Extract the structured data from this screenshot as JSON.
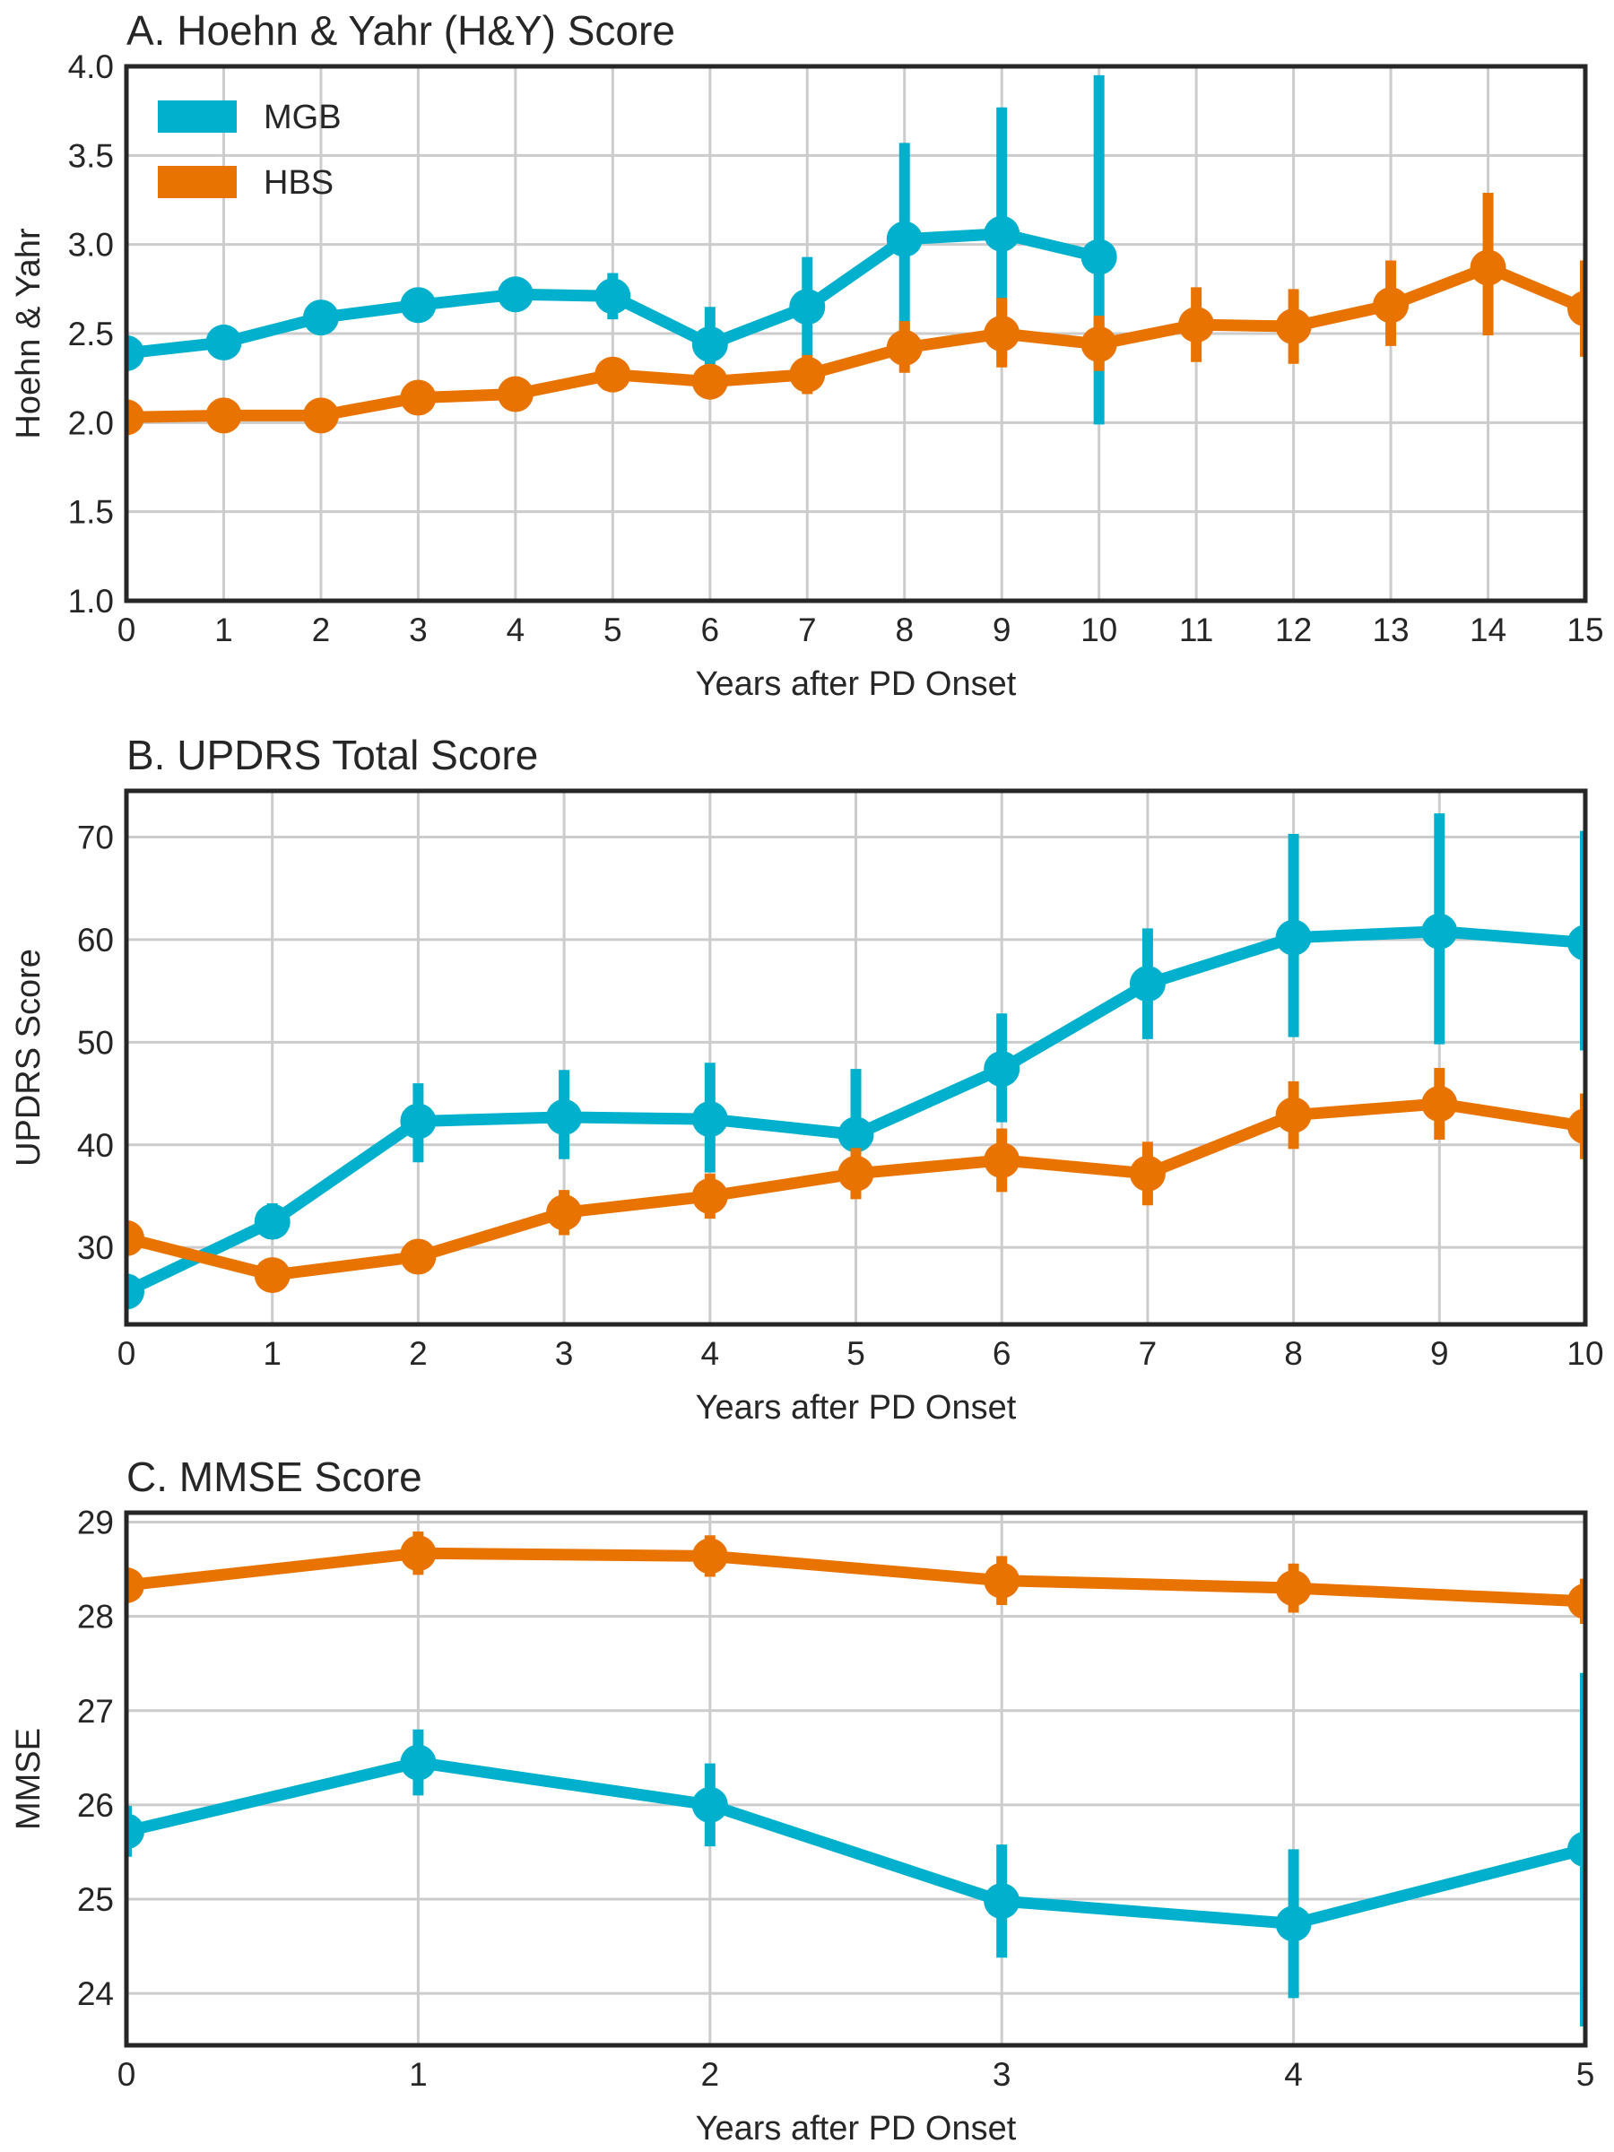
{
  "colors": {
    "MGB": "#00b0cc",
    "HBS": "#e97300"
  },
  "legend": [
    {
      "name": "MGB",
      "color": "#00b0cc"
    },
    {
      "name": "HBS",
      "color": "#e97300"
    }
  ],
  "chart_data": [
    {
      "type": "line",
      "title": "A. Hoehn & Yahr (H&Y) Score",
      "xlabel": "Years after PD Onset",
      "ylabel": "Hoehn & Yahr",
      "xlim": [
        0,
        15
      ],
      "ylim": [
        1.0,
        4.0
      ],
      "xticks": [
        0,
        1,
        2,
        3,
        4,
        5,
        6,
        7,
        8,
        9,
        10,
        11,
        12,
        13,
        14,
        15
      ],
      "yticks": [
        1.0,
        1.5,
        2.0,
        2.5,
        3.0,
        3.5,
        4.0
      ],
      "ytick_labels": [
        "1.0",
        "1.5",
        "2.0",
        "2.5",
        "3.0",
        "3.5",
        "4.0"
      ],
      "grid": true,
      "legend_position": "top-left",
      "series": [
        {
          "name": "MGB",
          "x": [
            0,
            1,
            2,
            3,
            4,
            5,
            6,
            7,
            8,
            9,
            10
          ],
          "y": [
            2.39,
            2.45,
            2.59,
            2.66,
            2.72,
            2.71,
            2.44,
            2.65,
            3.03,
            3.06,
            2.93
          ],
          "err_low": [
            2.35,
            2.41,
            2.55,
            2.62,
            2.68,
            2.58,
            2.23,
            2.37,
            2.5,
            2.37,
            1.99
          ],
          "err_high": [
            2.43,
            2.5,
            2.63,
            2.71,
            2.76,
            2.84,
            2.65,
            2.93,
            3.57,
            3.77,
            3.95
          ]
        },
        {
          "name": "HBS",
          "x": [
            0,
            1,
            2,
            3,
            4,
            5,
            6,
            7,
            8,
            9,
            10,
            11,
            12,
            13,
            14,
            15
          ],
          "y": [
            2.03,
            2.04,
            2.04,
            2.14,
            2.16,
            2.27,
            2.23,
            2.27,
            2.42,
            2.5,
            2.44,
            2.55,
            2.54,
            2.66,
            2.87,
            2.64
          ],
          "err_low": [
            1.99,
            2.0,
            2.0,
            2.1,
            2.12,
            2.18,
            2.14,
            2.16,
            2.28,
            2.31,
            2.29,
            2.34,
            2.33,
            2.43,
            2.49,
            2.37
          ],
          "err_high": [
            2.07,
            2.08,
            2.08,
            2.18,
            2.21,
            2.36,
            2.32,
            2.38,
            2.57,
            2.7,
            2.6,
            2.76,
            2.75,
            2.91,
            3.29,
            2.91
          ]
        }
      ]
    },
    {
      "type": "line",
      "title": "B. UPDRS Total Score",
      "xlabel": "Years after PD Onset",
      "ylabel": "UPDRS Score",
      "xlim": [
        0,
        10
      ],
      "ylim": [
        22.5,
        74.5
      ],
      "xticks": [
        0,
        1,
        2,
        3,
        4,
        5,
        6,
        7,
        8,
        9,
        10
      ],
      "yticks": [
        30,
        40,
        50,
        60,
        70
      ],
      "ytick_labels": [
        "30",
        "40",
        "50",
        "60",
        "70"
      ],
      "grid": true,
      "series": [
        {
          "name": "MGB",
          "x": [
            0,
            1,
            2,
            3,
            4,
            5,
            6,
            7,
            8,
            9,
            10
          ],
          "y": [
            25.7,
            32.5,
            42.3,
            42.7,
            42.5,
            41.0,
            47.4,
            55.7,
            60.2,
            60.8,
            59.7
          ],
          "err_low": [
            24.7,
            30.8,
            38.3,
            38.6,
            37.3,
            34.8,
            42.2,
            50.3,
            50.5,
            49.8,
            49.2
          ],
          "err_high": [
            26.7,
            34.3,
            46.0,
            47.3,
            48.0,
            47.4,
            52.8,
            61.1,
            70.3,
            72.3,
            70.6
          ]
        },
        {
          "name": "HBS",
          "x": [
            0,
            1,
            2,
            3,
            4,
            5,
            6,
            7,
            8,
            9,
            10
          ],
          "y": [
            30.9,
            27.3,
            29.1,
            33.4,
            35.0,
            37.2,
            38.5,
            37.2,
            42.9,
            44.0,
            41.8
          ],
          "err_low": [
            29.3,
            26.3,
            27.8,
            31.2,
            32.8,
            34.7,
            35.4,
            34.1,
            39.6,
            40.5,
            38.6
          ],
          "err_high": [
            32.5,
            28.3,
            30.4,
            35.6,
            37.2,
            39.7,
            41.6,
            40.3,
            46.2,
            47.5,
            45.0
          ]
        }
      ]
    },
    {
      "type": "line",
      "title": "C. MMSE Score",
      "xlabel": "Years after PD Onset",
      "ylabel": "MMSE",
      "xlim": [
        0,
        5
      ],
      "ylim": [
        23.45,
        29.1
      ],
      "xticks": [
        0,
        1,
        2,
        3,
        4,
        5
      ],
      "yticks": [
        24,
        25,
        26,
        27,
        28,
        29
      ],
      "ytick_labels": [
        "24",
        "25",
        "26",
        "27",
        "28",
        "29"
      ],
      "grid": true,
      "series": [
        {
          "name": "MGB",
          "x": [
            0,
            1,
            2,
            3,
            4,
            5
          ],
          "y": [
            25.72,
            26.45,
            26.0,
            24.98,
            24.74,
            25.53
          ],
          "err_low": [
            25.45,
            26.1,
            25.56,
            24.38,
            23.95,
            23.65
          ],
          "err_high": [
            25.99,
            26.8,
            26.44,
            25.58,
            25.53,
            27.4
          ]
        },
        {
          "name": "HBS",
          "x": [
            0,
            1,
            2,
            3,
            4,
            5
          ],
          "y": [
            28.33,
            28.67,
            28.64,
            28.38,
            28.3,
            28.16
          ],
          "err_low": [
            28.16,
            28.44,
            28.42,
            28.12,
            28.04,
            27.92
          ],
          "err_high": [
            28.5,
            28.9,
            28.86,
            28.64,
            28.56,
            28.4
          ]
        }
      ]
    }
  ]
}
